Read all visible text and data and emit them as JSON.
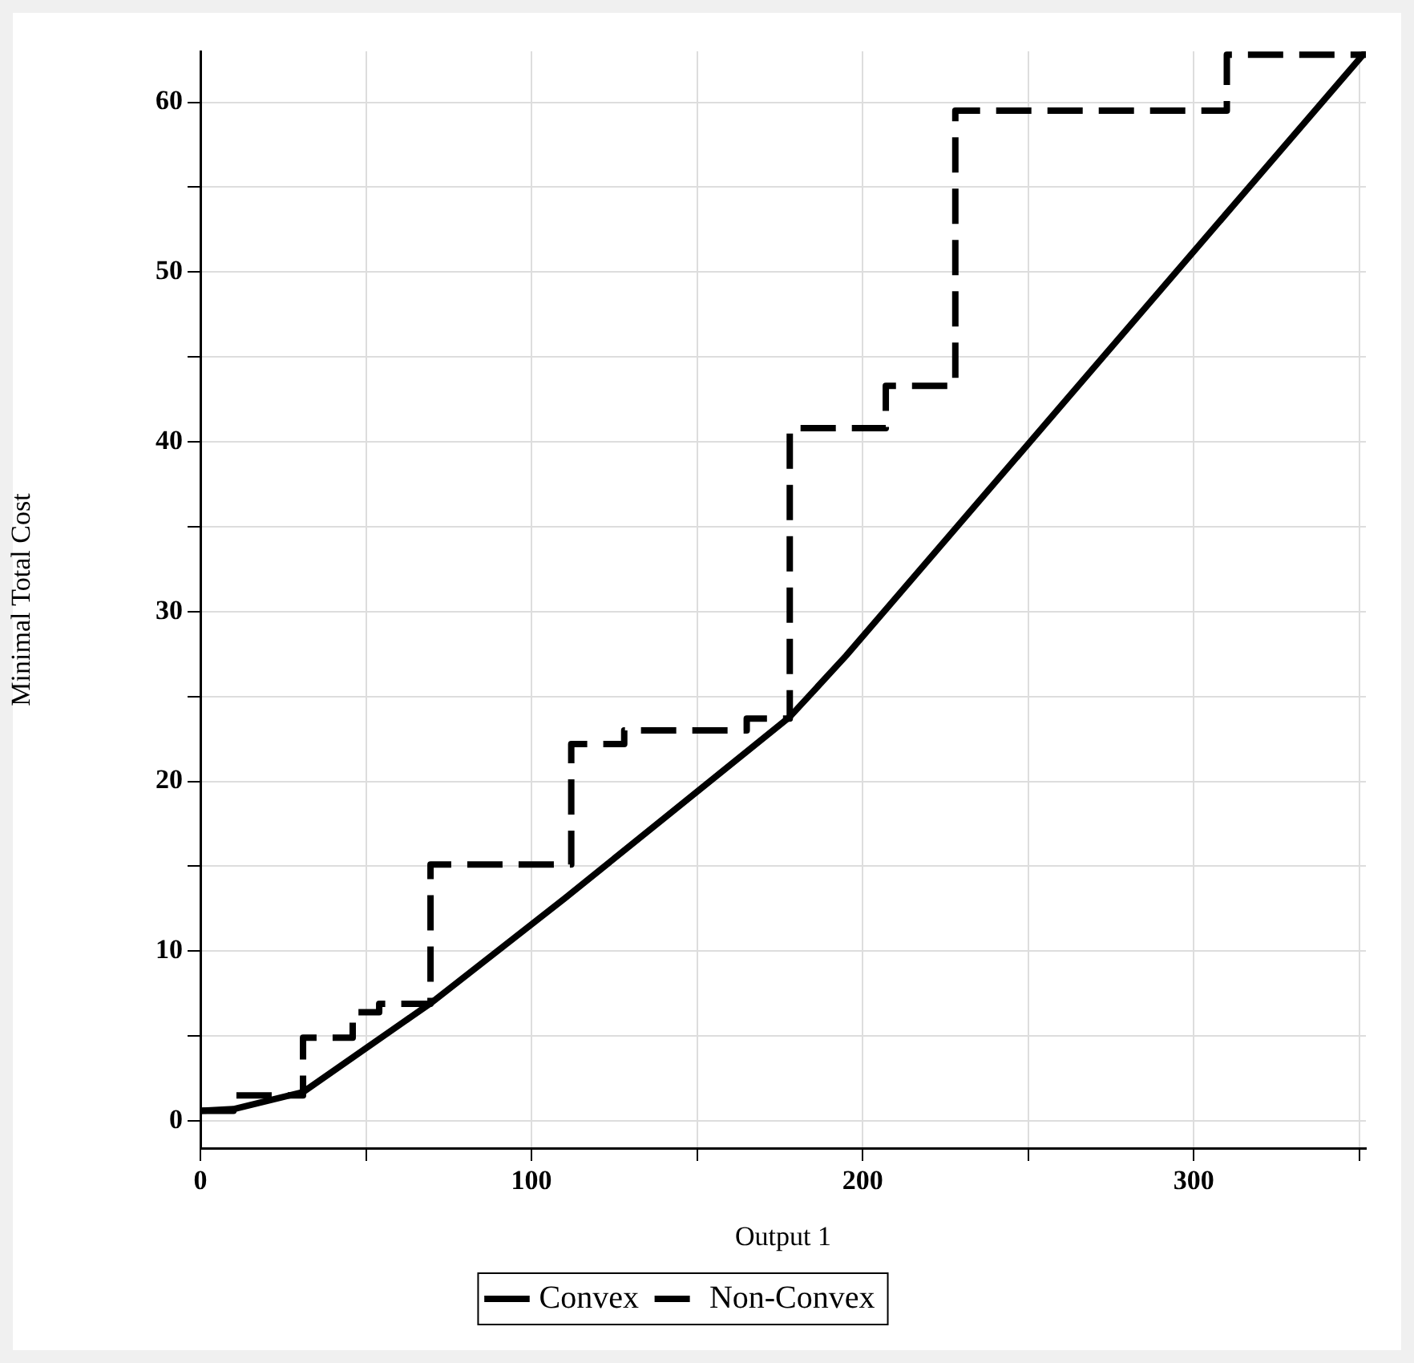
{
  "chart_data": {
    "type": "line",
    "xlabel": "Output 1",
    "ylabel": "Minimal Total Cost",
    "xlim": [
      0,
      352
    ],
    "ylim": [
      -1.6,
      63
    ],
    "xticks": [
      0,
      {
        "value": 50,
        "label": null
      },
      100,
      {
        "value": 150,
        "label": null
      },
      200,
      {
        "value": 250,
        "label": null
      },
      300,
      {
        "value": 350,
        "label": null
      }
    ],
    "yticks": [
      0,
      {
        "value": 5,
        "label": null
      },
      10,
      {
        "value": 15,
        "label": null
      },
      20,
      {
        "value": 25,
        "label": null
      },
      30,
      {
        "value": 35,
        "label": null
      },
      40,
      {
        "value": 45,
        "label": null
      },
      50,
      {
        "value": 55,
        "label": null
      },
      60
    ],
    "grid": true,
    "legend": "bottom",
    "series": [
      {
        "name": "Convex",
        "type": "line",
        "line_style": "solid",
        "color": "#000000",
        "x": [
          0,
          10,
          31,
          70,
          110,
          178,
          195,
          352
        ],
        "values": [
          0.6,
          0.7,
          1.7,
          7,
          13.1,
          23.8,
          27.4,
          63
        ]
      },
      {
        "name": "Non-Convex",
        "type": "step",
        "line_style": "dashed",
        "color": "#000000",
        "x": [
          0,
          10,
          31,
          46,
          54,
          69.5,
          112,
          128,
          165,
          178,
          207,
          228,
          310,
          352
        ],
        "values": [
          0.6,
          1.5,
          4.9,
          6.4,
          6.9,
          15.1,
          22.2,
          23,
          23.7,
          40.8,
          43.3,
          59.5,
          62.8,
          62.8
        ]
      }
    ]
  }
}
